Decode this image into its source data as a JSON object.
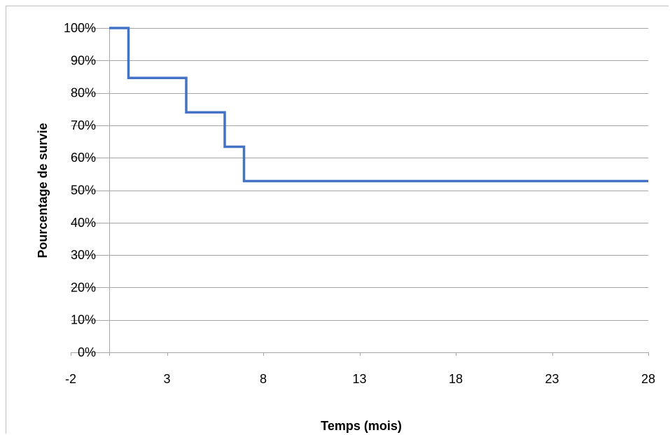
{
  "chart_data": {
    "type": "line",
    "step": true,
    "xlabel": "Temps (mois)",
    "ylabel": "Pourcentage de survie",
    "xlim": [
      -2,
      28
    ],
    "ylim": [
      0,
      100
    ],
    "x_ticks": [
      -2,
      3,
      8,
      13,
      18,
      23,
      28
    ],
    "x_tick_labels": [
      "-2",
      "3",
      "8",
      "13",
      "18",
      "23",
      "28"
    ],
    "y_ticks": [
      0,
      10,
      20,
      30,
      40,
      50,
      60,
      70,
      80,
      90,
      100
    ],
    "y_tick_labels": [
      "0%",
      "10%",
      "20%",
      "30%",
      "40%",
      "50%",
      "60%",
      "70%",
      "80%",
      "90%",
      "100%"
    ],
    "grid": true,
    "series": [
      {
        "color": "#4472c4",
        "points": [
          {
            "x": 0,
            "y": 100
          },
          {
            "x": 1,
            "y": 100
          },
          {
            "x": 1,
            "y": 84.6
          },
          {
            "x": 4,
            "y": 84.6
          },
          {
            "x": 4,
            "y": 74
          },
          {
            "x": 6,
            "y": 74
          },
          {
            "x": 6,
            "y": 63.4
          },
          {
            "x": 7,
            "y": 63.4
          },
          {
            "x": 7,
            "y": 52.8
          },
          {
            "x": 28,
            "y": 52.8
          }
        ]
      }
    ]
  }
}
